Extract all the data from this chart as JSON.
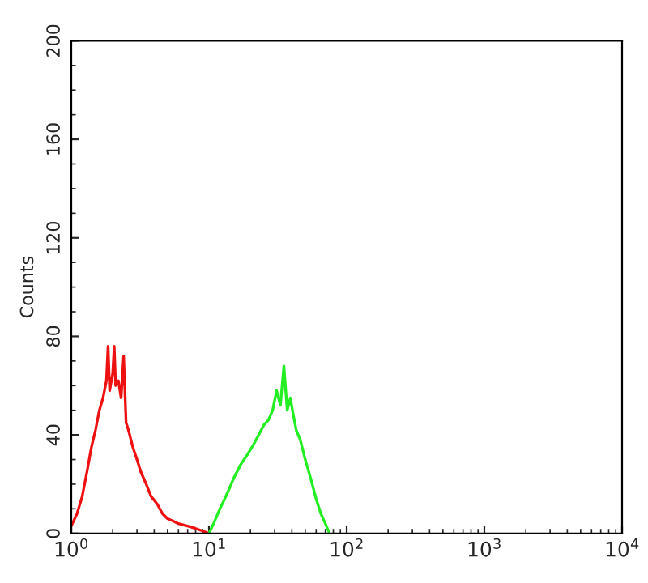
{
  "chart_data": {
    "type": "line",
    "ylabel": "Counts",
    "log": "x",
    "xlim": [
      1,
      10000
    ],
    "xticks": [
      {
        "value": 1,
        "label": "10$^{0}$"
      },
      {
        "value": 10,
        "label": "10$^{1}$"
      },
      {
        "value": 100,
        "label": "10$^{2}$"
      },
      {
        "value": 1000,
        "label": "10$^{3}$"
      },
      {
        "value": 10000,
        "label": "10$^{4}$"
      }
    ],
    "ylim": [
      0,
      200
    ],
    "yticks": [
      0,
      40,
      80,
      120,
      160,
      200
    ],
    "grid": false,
    "legend": false,
    "series": [
      {
        "color": "#ee1111",
        "x": [
          1.0,
          1.1,
          1.2,
          1.3,
          1.4,
          1.5,
          1.6,
          1.7,
          1.8,
          1.85,
          1.9,
          2.0,
          2.05,
          2.1,
          2.2,
          2.3,
          2.4,
          2.5,
          2.6,
          2.8,
          3.0,
          3.2,
          3.5,
          3.8,
          4.2,
          4.6,
          5.0,
          5.5,
          6,
          7,
          8,
          9,
          10
        ],
        "values": [
          3,
          8,
          15,
          25,
          35,
          42,
          50,
          55,
          62,
          76,
          58,
          65,
          76,
          60,
          62,
          55,
          72,
          45,
          42,
          35,
          30,
          25,
          20,
          15,
          12,
          8,
          6,
          5,
          4,
          3,
          2,
          1,
          0
        ]
      },
      {
        "color": "#22ee22",
        "x": [
          10,
          11,
          12,
          13,
          14,
          15,
          17,
          19,
          21,
          23,
          25,
          27,
          29,
          31,
          33,
          35,
          37,
          39,
          41,
          43,
          46,
          50,
          55,
          60,
          65,
          70,
          75
        ],
        "values": [
          0,
          5,
          10,
          14,
          18,
          22,
          28,
          32,
          36,
          40,
          44,
          46,
          50,
          58,
          52,
          68,
          50,
          55,
          48,
          42,
          38,
          30,
          22,
          14,
          8,
          4,
          0
        ]
      }
    ]
  }
}
